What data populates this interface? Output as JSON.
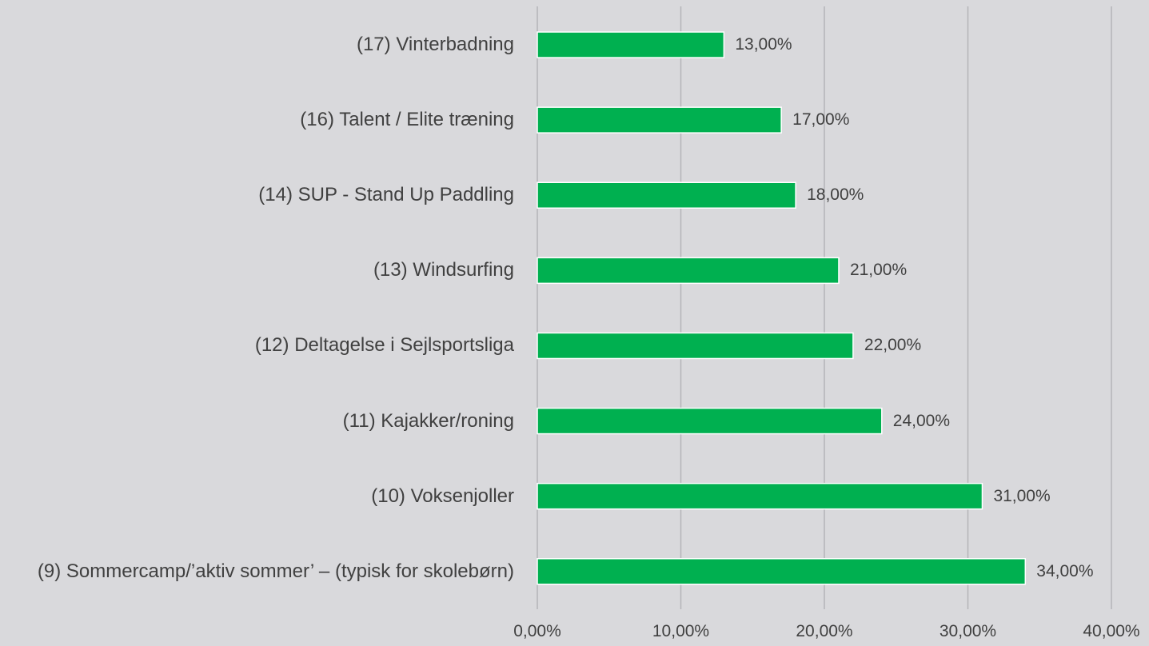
{
  "chart_data": {
    "type": "bar",
    "orientation": "horizontal",
    "categories": [
      "(17) Vinterbadning",
      "(16) Talent / Elite træning",
      "(14) SUP - Stand Up Paddling",
      "(13) Windsurfing",
      "(12) Deltagelse i Sejlsportsliga",
      "(11) Kajakker/roning",
      "(10) Voksenjoller",
      "(9) Sommercamp/’aktiv sommer’ – (typisk for skolebørn)"
    ],
    "values": [
      13,
      17,
      18,
      21,
      22,
      24,
      31,
      34
    ],
    "value_labels": [
      "13,00%",
      "17,00%",
      "18,00%",
      "21,00%",
      "22,00%",
      "24,00%",
      "31,00%",
      "34,00%"
    ],
    "color": "#00b050",
    "xlim": [
      0,
      40
    ],
    "xticks": [
      {
        "value": 0,
        "label": "0,00%"
      },
      {
        "value": 10,
        "label": "10,00%"
      },
      {
        "value": 20,
        "label": "20,00%"
      },
      {
        "value": 30,
        "label": "30,00%"
      },
      {
        "value": 40,
        "label": "40,00%"
      }
    ],
    "grid": true
  }
}
